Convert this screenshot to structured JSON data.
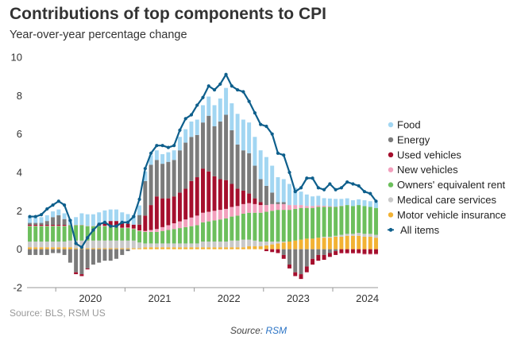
{
  "title": "Contributions of top components to CPI",
  "subtitle": "Year-over-year percentage change",
  "source_note": "Source: BLS, RSM US",
  "footer": {
    "prefix": "Source: ",
    "link": "RSM"
  },
  "chart_data": {
    "type": "bar",
    "stacked": true,
    "x_label_dates": [
      "2019-08",
      "2019-09",
      "2019-10",
      "2019-11",
      "2019-12",
      "2020-01",
      "2020-02",
      "2020-03",
      "2020-04",
      "2020-05",
      "2020-06",
      "2020-07",
      "2020-08",
      "2020-09",
      "2020-10",
      "2020-11",
      "2020-12",
      "2021-01",
      "2021-02",
      "2021-03",
      "2021-04",
      "2021-05",
      "2021-06",
      "2021-07",
      "2021-08",
      "2021-09",
      "2021-10",
      "2021-11",
      "2021-12",
      "2022-01",
      "2022-02",
      "2022-03",
      "2022-04",
      "2022-05",
      "2022-06",
      "2022-07",
      "2022-08",
      "2022-09",
      "2022-10",
      "2022-11",
      "2022-12",
      "2023-01",
      "2023-02",
      "2023-03",
      "2023-04",
      "2023-05",
      "2023-06",
      "2023-07",
      "2023-08",
      "2023-09",
      "2023-10",
      "2023-11",
      "2023-12",
      "2024-01",
      "2024-02",
      "2024-03",
      "2024-04",
      "2024-05",
      "2024-06",
      "2024-07",
      "2024-08"
    ],
    "ylim": [
      -2,
      10
    ],
    "yticks": [
      -2,
      0,
      2,
      4,
      6,
      8,
      10
    ],
    "xticks": [
      "2020",
      "2021",
      "2022",
      "2023",
      "2024"
    ],
    "grid": false,
    "legend_position": "right",
    "series": [
      {
        "name": "Motor vehicle insurance",
        "color": "#f2b233",
        "values": [
          0.1,
          0.1,
          0.1,
          0.1,
          0.1,
          0.1,
          0.1,
          0.1,
          0.05,
          0.05,
          0.05,
          0.05,
          0.05,
          0.05,
          0.05,
          0.05,
          0.05,
          0.05,
          0.05,
          0.05,
          0.1,
          0.1,
          0.1,
          0.1,
          0.1,
          0.1,
          0.1,
          0.1,
          0.1,
          0.1,
          0.1,
          0.1,
          0.1,
          0.1,
          0.1,
          0.1,
          0.1,
          0.1,
          0.15,
          0.15,
          0.15,
          0.2,
          0.25,
          0.3,
          0.35,
          0.4,
          0.45,
          0.5,
          0.55,
          0.55,
          0.6,
          0.6,
          0.6,
          0.65,
          0.65,
          0.7,
          0.7,
          0.7,
          0.65,
          0.65,
          0.6
        ]
      },
      {
        "name": "Medical care services",
        "color": "#c9c9c9",
        "values": [
          0.3,
          0.3,
          0.3,
          0.3,
          0.3,
          0.3,
          0.3,
          0.35,
          0.4,
          0.4,
          0.4,
          0.4,
          0.4,
          0.4,
          0.4,
          0.4,
          0.4,
          0.4,
          0.4,
          0.3,
          0.2,
          0.2,
          0.2,
          0.2,
          0.2,
          0.2,
          0.2,
          0.2,
          0.2,
          0.2,
          0.3,
          0.3,
          0.3,
          0.3,
          0.3,
          0.35,
          0.35,
          0.4,
          0.35,
          0.3,
          0.25,
          0.2,
          0.15,
          0.1,
          0.05,
          0,
          0,
          0,
          0,
          0,
          0,
          0.05,
          0.05,
          0.05,
          0.1,
          0.1,
          0.1,
          0.15,
          0.15,
          0.15,
          0.15
        ]
      },
      {
        "name": "Owners' equivalent rent",
        "color": "#6cbf5c",
        "values": [
          0.8,
          0.8,
          0.8,
          0.8,
          0.8,
          0.8,
          0.8,
          0.8,
          0.8,
          0.8,
          0.75,
          0.75,
          0.75,
          0.75,
          0.7,
          0.7,
          0.65,
          0.65,
          0.6,
          0.6,
          0.6,
          0.6,
          0.6,
          0.65,
          0.7,
          0.75,
          0.8,
          0.85,
          0.9,
          0.95,
          1.0,
          1.05,
          1.1,
          1.15,
          1.2,
          1.25,
          1.3,
          1.35,
          1.4,
          1.45,
          1.5,
          1.55,
          1.6,
          1.65,
          1.65,
          1.65,
          1.65,
          1.65,
          1.6,
          1.6,
          1.6,
          1.55,
          1.55,
          1.5,
          1.5,
          1.5,
          1.45,
          1.45,
          1.45,
          1.4,
          1.4
        ]
      },
      {
        "name": "New vehicles",
        "color": "#f2a0bd",
        "values": [
          0.02,
          0.02,
          0.02,
          0.02,
          0.02,
          0.02,
          0.02,
          0.02,
          0.02,
          0.02,
          0.02,
          0.02,
          0.02,
          0.02,
          0.02,
          0.02,
          0.02,
          0.03,
          0.03,
          0.03,
          0.05,
          0.1,
          0.15,
          0.2,
          0.25,
          0.3,
          0.35,
          0.4,
          0.45,
          0.5,
          0.5,
          0.5,
          0.5,
          0.5,
          0.5,
          0.5,
          0.5,
          0.5,
          0.5,
          0.45,
          0.4,
          0.35,
          0.35,
          0.3,
          0.3,
          0.25,
          0.2,
          0.15,
          0.1,
          0.1,
          0.08,
          0.06,
          0.04,
          0.02,
          0.02,
          0,
          0,
          0,
          0,
          0,
          0
        ]
      },
      {
        "name": "Used vehicles",
        "color": "#a50f2d",
        "values": [
          0.05,
          0.05,
          0.05,
          0.05,
          0.05,
          0.05,
          0.05,
          0,
          0,
          0,
          0,
          0,
          0.1,
          0.2,
          0.3,
          0.3,
          0.3,
          0.2,
          0.2,
          0.3,
          0.8,
          1.3,
          1.7,
          1.5,
          1.4,
          1.4,
          1.5,
          1.6,
          1.9,
          2.0,
          2.3,
          2.1,
          1.8,
          1.6,
          1.5,
          1.2,
          0.9,
          0.7,
          0.5,
          0.3,
          0.15,
          0,
          0,
          0,
          0,
          0,
          0,
          0,
          0,
          0,
          0,
          0,
          0,
          0,
          0,
          0,
          0,
          0,
          0,
          0,
          0
        ]
      },
      {
        "name": "Energy",
        "color": "#7b7b7b",
        "values": [
          0.1,
          0.1,
          0.1,
          0.2,
          0.4,
          0.5,
          0.3,
          0,
          0,
          0,
          0,
          0,
          0,
          0,
          0,
          0,
          0,
          0,
          0,
          0.5,
          1.8,
          2.1,
          1.9,
          1.8,
          1.9,
          1.9,
          2.2,
          2.4,
          2.3,
          2.2,
          2.4,
          2.9,
          2.6,
          3.0,
          3.4,
          2.8,
          2.3,
          2.1,
          2.1,
          1.7,
          1.2,
          1.0,
          0.6,
          0.1,
          0.1,
          0,
          0,
          0,
          0,
          0,
          0,
          0,
          0,
          0,
          0,
          0,
          0,
          0,
          0,
          0,
          0
        ]
      },
      {
        "name": "Food",
        "color": "#a2d6f2",
        "values": [
          0.3,
          0.3,
          0.3,
          0.3,
          0.3,
          0.3,
          0.3,
          0.3,
          0.4,
          0.6,
          0.6,
          0.6,
          0.6,
          0.6,
          0.6,
          0.6,
          0.5,
          0.5,
          0.5,
          0.5,
          0.5,
          0.5,
          0.5,
          0.5,
          0.5,
          0.5,
          0.7,
          0.7,
          0.8,
          0.8,
          0.9,
          1.0,
          1.1,
          1.2,
          1.4,
          1.4,
          1.6,
          1.6,
          1.6,
          1.5,
          1.5,
          1.5,
          1.4,
          1.3,
          1.2,
          1.1,
          0.9,
          0.7,
          0.6,
          0.5,
          0.5,
          0.4,
          0.4,
          0.4,
          0.35,
          0.35,
          0.3,
          0.3,
          0.3,
          0.3,
          0.3
        ]
      },
      {
        "name": "Energy",
        "color": "#7b7b7b",
        "negative": true,
        "values": [
          -0.3,
          -0.3,
          -0.3,
          -0.3,
          -0.2,
          -0.2,
          -0.3,
          -0.7,
          -1.2,
          -1.3,
          -1.0,
          -0.8,
          -0.7,
          -0.6,
          -0.6,
          -0.5,
          -0.3,
          -0.1,
          0,
          0,
          0,
          0,
          0,
          0,
          0,
          0,
          0,
          0,
          0,
          0,
          0,
          0,
          0,
          0,
          0,
          0,
          0,
          0,
          0,
          0,
          0,
          0,
          0,
          0,
          -0.3,
          -0.8,
          -1.2,
          -1.3,
          -0.9,
          -0.5,
          -0.3,
          -0.3,
          -0.2,
          -0.1,
          0,
          0,
          0,
          0,
          0,
          0,
          0
        ]
      },
      {
        "name": "Used vehicles",
        "color": "#a50f2d",
        "negative": true,
        "values": [
          0,
          0,
          0,
          0,
          0,
          0,
          0,
          0,
          -0.1,
          -0.1,
          -0.05,
          0,
          0,
          0,
          0,
          0,
          0,
          0,
          0,
          0,
          0,
          0,
          0,
          0,
          0,
          0,
          0,
          0,
          0,
          0,
          0,
          0,
          0,
          0,
          0,
          0,
          0,
          0,
          0,
          0,
          0,
          -0.1,
          -0.15,
          -0.2,
          -0.2,
          -0.2,
          -0.2,
          -0.25,
          -0.3,
          -0.3,
          -0.3,
          -0.25,
          -0.2,
          -0.2,
          -0.2,
          -0.2,
          -0.2,
          -0.2,
          -0.25,
          -0.25,
          -0.25
        ]
      },
      {
        "name": "New vehicles",
        "color": "#f2a0bd",
        "negative": true,
        "values": [
          0,
          0,
          0,
          0,
          0,
          0,
          0,
          0,
          0,
          0,
          0,
          0,
          0,
          0,
          0,
          0,
          0,
          0,
          0,
          0,
          0,
          0,
          0,
          0,
          0,
          0,
          0,
          0,
          0,
          0,
          0,
          0,
          0,
          0,
          0,
          0,
          0,
          0,
          0,
          0,
          0,
          0,
          0,
          0,
          0,
          0,
          0,
          0,
          0,
          0,
          0,
          0,
          0,
          0,
          -0.02,
          -0.03,
          -0.03,
          -0.03,
          -0.03,
          -0.03,
          -0.03
        ]
      }
    ],
    "line": {
      "name": "All items",
      "color": "#0e5f8c",
      "values": [
        1.7,
        1.7,
        1.8,
        2.1,
        2.3,
        2.5,
        2.3,
        1.5,
        0.3,
        0.1,
        0.6,
        1.0,
        1.3,
        1.4,
        1.2,
        1.2,
        1.4,
        1.4,
        1.7,
        2.6,
        4.2,
        5.0,
        5.4,
        5.4,
        5.3,
        5.4,
        6.2,
        6.8,
        7.0,
        7.5,
        7.9,
        8.5,
        8.3,
        8.6,
        9.1,
        8.5,
        8.3,
        8.2,
        7.7,
        7.1,
        6.5,
        6.4,
        6.0,
        5.0,
        4.9,
        4.0,
        3.0,
        3.2,
        3.7,
        3.7,
        3.2,
        3.1,
        3.4,
        3.1,
        3.2,
        3.5,
        3.4,
        3.3,
        3.0,
        2.9,
        2.5
      ]
    }
  }
}
